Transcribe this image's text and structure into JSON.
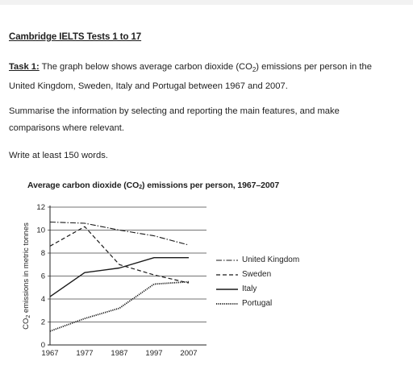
{
  "heading": "Cambridge IELTS Tests 1 to 17",
  "task": {
    "label": "Task 1:",
    "line1_pre": " The graph below shows average carbon dioxide (CO",
    "line1_sub": "2",
    "line1_post": ") emissions per person in the",
    "line2": "United Kingdom, Sweden, Italy and Portugal between 1967 and 2007."
  },
  "instruction": {
    "line1": "Summarise the information by selecting and reporting the main features, and make",
    "line2": "comparisons where relevant."
  },
  "word_count_note": "Write at least 150 words.",
  "chart_data": {
    "type": "line",
    "title_pre": "Average carbon dioxide (CO",
    "title_sub": "2",
    "title_post": ") emissions per person, 1967–2007",
    "ylabel_pre": "CO",
    "ylabel_sub": "2",
    "ylabel_post": " emissions in metric tonnes",
    "xlabel": "",
    "x": [
      1967,
      1977,
      1987,
      1997,
      2007
    ],
    "x_ticks": [
      "1967",
      "1977",
      "1987",
      "1997",
      "2007"
    ],
    "y_ticks": [
      "0",
      "2",
      "4",
      "6",
      "8",
      "10",
      "12"
    ],
    "ylim": [
      0,
      12
    ],
    "grid": "horizontal",
    "legend_position": "right",
    "series": [
      {
        "name": "United Kingdom",
        "style": "dashdot",
        "x": [
          1967,
          1977,
          1987,
          1997,
          2007
        ],
        "values": [
          10.7,
          10.6,
          10.0,
          9.5,
          8.7
        ]
      },
      {
        "name": "Sweden",
        "style": "dashed",
        "x": [
          1967,
          1977,
          1987,
          1997,
          2007
        ],
        "values": [
          8.6,
          10.3,
          7.0,
          6.1,
          5.4
        ]
      },
      {
        "name": "Italy",
        "style": "solid",
        "x": [
          1967,
          1977,
          1987,
          1997,
          2002,
          2007
        ],
        "values": [
          4.2,
          6.3,
          6.7,
          7.6,
          7.6,
          7.6
        ]
      },
      {
        "name": "Portugal",
        "style": "dotted",
        "x": [
          1967,
          1977,
          1987,
          1997,
          2007
        ],
        "values": [
          1.2,
          2.3,
          3.2,
          5.3,
          5.5
        ]
      }
    ]
  }
}
